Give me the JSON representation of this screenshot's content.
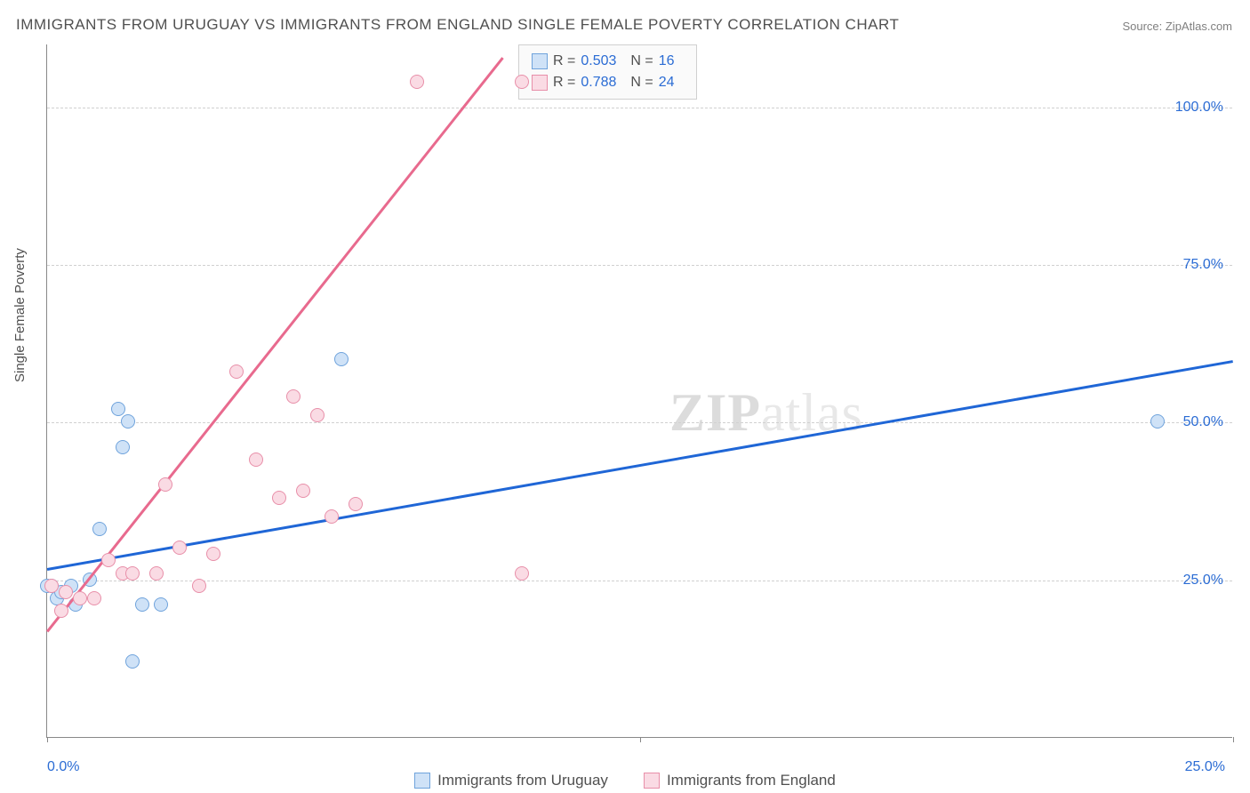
{
  "title": "IMMIGRANTS FROM URUGUAY VS IMMIGRANTS FROM ENGLAND SINGLE FEMALE POVERTY CORRELATION CHART",
  "source": "Source: ZipAtlas.com",
  "watermark_a": "ZIP",
  "watermark_b": "atlas",
  "y_axis_label": "Single Female Poverty",
  "chart": {
    "type": "scatter",
    "background_color": "#ffffff",
    "grid_color": "#d0d0d0",
    "axis_color": "#888888",
    "text_color": "#505050",
    "value_color": "#2b6cd4",
    "xlim": [
      0,
      25
    ],
    "ylim": [
      0,
      110
    ],
    "y_ticks": [
      {
        "v": 25,
        "label": "25.0%"
      },
      {
        "v": 50,
        "label": "50.0%"
      },
      {
        "v": 75,
        "label": "75.0%"
      },
      {
        "v": 100,
        "label": "100.0%"
      }
    ],
    "x_ticks": [
      0,
      12.5,
      25
    ],
    "x_labels": [
      {
        "v": 0,
        "label": "0.0%",
        "align": "left"
      },
      {
        "v": 25,
        "label": "25.0%",
        "align": "right"
      }
    ],
    "point_radius": 8,
    "series": [
      {
        "name": "Immigrants from Uruguay",
        "fill": "#cfe2f7",
        "stroke": "#6fa3dc",
        "line_color": "#1f66d6",
        "R": "0.503",
        "N": "16",
        "trend": {
          "x1": 0,
          "y1": 27,
          "x2": 25,
          "y2": 60
        },
        "points": [
          {
            "x": 0.1,
            "y": 24
          },
          {
            "x": 0.2,
            "y": 22
          },
          {
            "x": 0.3,
            "y": 23
          },
          {
            "x": 0.6,
            "y": 21
          },
          {
            "x": 0.9,
            "y": 25
          },
          {
            "x": 1.1,
            "y": 33
          },
          {
            "x": 1.5,
            "y": 52
          },
          {
            "x": 1.6,
            "y": 46
          },
          {
            "x": 1.7,
            "y": 50
          },
          {
            "x": 1.8,
            "y": 12
          },
          {
            "x": 2.0,
            "y": 21
          },
          {
            "x": 2.4,
            "y": 21
          },
          {
            "x": 6.2,
            "y": 60
          },
          {
            "x": 23.4,
            "y": 50
          },
          {
            "x": 0.0,
            "y": 24
          },
          {
            "x": 0.5,
            "y": 24
          }
        ]
      },
      {
        "name": "Immigrants from England",
        "fill": "#fadbe4",
        "stroke": "#e88fa9",
        "line_color": "#e86a8e",
        "R": "0.788",
        "N": "24",
        "trend": {
          "x1": 0,
          "y1": 17,
          "x2": 9.6,
          "y2": 108
        },
        "points": [
          {
            "x": 0.1,
            "y": 24
          },
          {
            "x": 0.3,
            "y": 20
          },
          {
            "x": 0.4,
            "y": 23
          },
          {
            "x": 0.7,
            "y": 22
          },
          {
            "x": 1.0,
            "y": 22
          },
          {
            "x": 1.3,
            "y": 28
          },
          {
            "x": 1.6,
            "y": 26
          },
          {
            "x": 1.8,
            "y": 26
          },
          {
            "x": 2.3,
            "y": 26
          },
          {
            "x": 2.5,
            "y": 40
          },
          {
            "x": 2.8,
            "y": 30
          },
          {
            "x": 3.2,
            "y": 24
          },
          {
            "x": 3.5,
            "y": 29
          },
          {
            "x": 4.0,
            "y": 58
          },
          {
            "x": 4.4,
            "y": 44
          },
          {
            "x": 4.9,
            "y": 38
          },
          {
            "x": 5.2,
            "y": 54
          },
          {
            "x": 5.4,
            "y": 39
          },
          {
            "x": 5.7,
            "y": 51
          },
          {
            "x": 6.0,
            "y": 35
          },
          {
            "x": 6.5,
            "y": 37
          },
          {
            "x": 7.8,
            "y": 104
          },
          {
            "x": 10.0,
            "y": 104
          },
          {
            "x": 10.0,
            "y": 26
          }
        ]
      }
    ]
  },
  "legend": {
    "r_label": "R =",
    "n_label": "N ="
  },
  "bottom_legend": [
    {
      "swatch_fill": "#cfe2f7",
      "swatch_stroke": "#6fa3dc",
      "label": "Immigrants from Uruguay"
    },
    {
      "swatch_fill": "#fadbe4",
      "swatch_stroke": "#e88fa9",
      "label": "Immigrants from England"
    }
  ]
}
